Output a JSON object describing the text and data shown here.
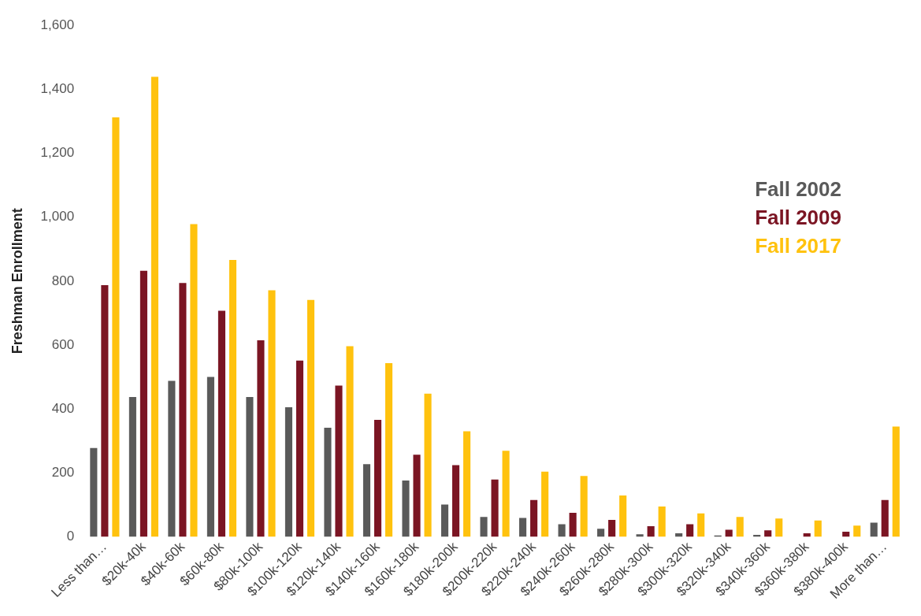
{
  "chart_data": {
    "type": "bar",
    "ylabel": "Freshman Enrollment",
    "categories": [
      "Less than…",
      "$20k-40k",
      "$40k-60k",
      "$60k-80k",
      "$80k-100k",
      "$100k-120k",
      "$120k-140k",
      "$140k-160k",
      "$160k-180k",
      "$180k-200k",
      "$200k-220k",
      "$220k-240k",
      "$240k-260k",
      "$260k-280k",
      "$280k-300k",
      "$300k-320k",
      "$320k-340k",
      "$340k-360k",
      "$360k-380k",
      "$380k-400k",
      "More than…"
    ],
    "series": [
      {
        "name": "Fall 2002",
        "color": "#5a5a5a",
        "values": [
          278,
          437,
          488,
          500,
          437,
          405,
          341,
          227,
          176,
          101,
          62,
          59,
          39,
          25,
          8,
          11,
          4,
          6,
          null,
          null,
          44
        ]
      },
      {
        "name": "Fall 2009",
        "color": "#7b1523",
        "values": [
          787,
          832,
          794,
          707,
          615,
          551,
          473,
          366,
          257,
          224,
          179,
          115,
          75,
          53,
          33,
          39,
          22,
          20,
          11,
          16,
          115
        ]
      },
      {
        "name": "Fall 2017",
        "color": "#ffc20e",
        "values": [
          1312,
          1439,
          978,
          866,
          771,
          741,
          596,
          543,
          448,
          330,
          269,
          204,
          190,
          129,
          95,
          73,
          62,
          57,
          51,
          35,
          345
        ]
      }
    ],
    "ylim": [
      0,
      1600
    ],
    "yticks": [
      {
        "value": 0,
        "label": "0"
      },
      {
        "value": 200,
        "label": "200"
      },
      {
        "value": 400,
        "label": "400"
      },
      {
        "value": 600,
        "label": "600"
      },
      {
        "value": 800,
        "label": "800"
      },
      {
        "value": 1000,
        "label": "1,000"
      },
      {
        "value": 1200,
        "label": "1,200"
      },
      {
        "value": 1400,
        "label": "1,400"
      },
      {
        "value": 1600,
        "label": "1,600"
      }
    ],
    "grid": false,
    "legend": "top right"
  }
}
